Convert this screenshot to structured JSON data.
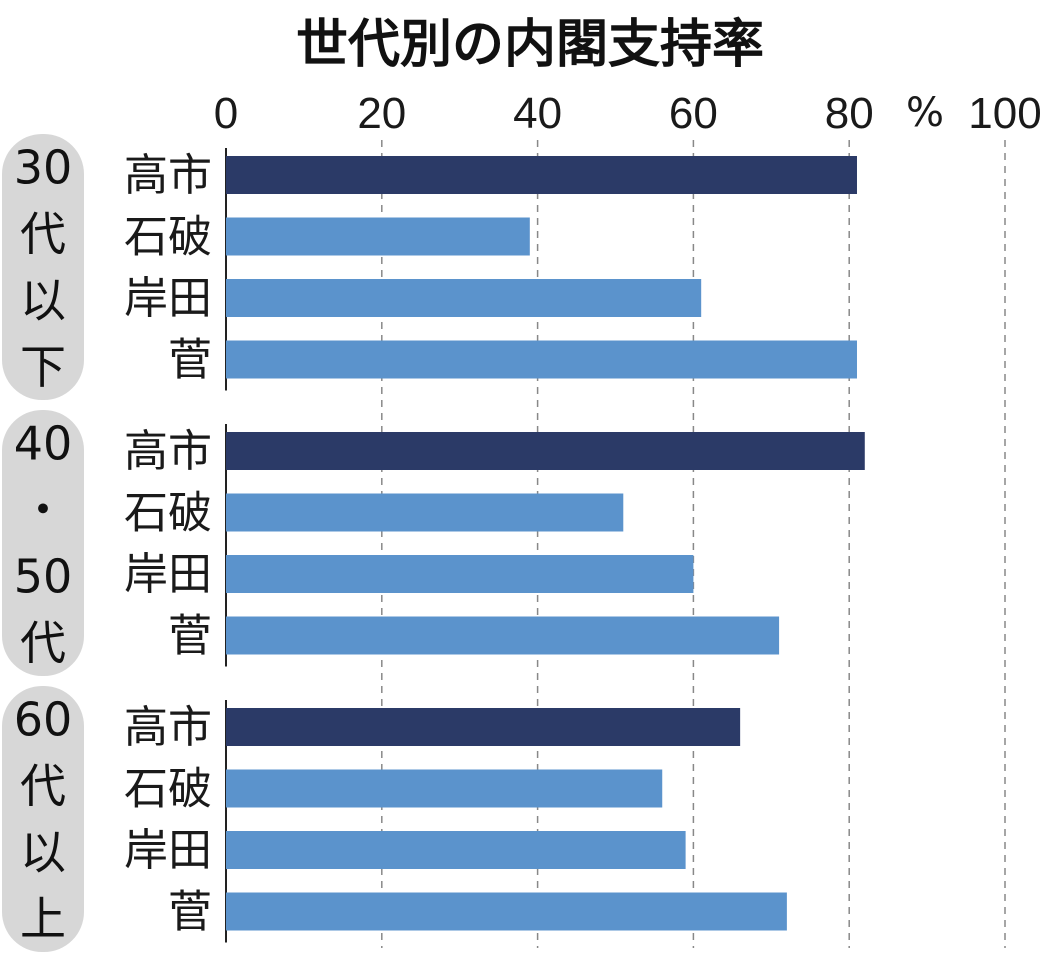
{
  "chart_data": {
    "type": "bar",
    "orientation": "horizontal",
    "title": "世代別の内閣支持率",
    "unit": "%",
    "xlim": [
      0,
      100
    ],
    "ticks": [
      "0",
      "20",
      "40",
      "60",
      "80",
      "100"
    ],
    "grid": "dashed vertical",
    "groups": [
      {
        "label": [
          "30",
          "代",
          "以",
          "下"
        ],
        "bars": [
          {
            "name": "高市",
            "value": 81,
            "color": "#2b3a67"
          },
          {
            "name": "石破",
            "value": 39,
            "color": "#5b93cc"
          },
          {
            "name": "岸田",
            "value": 61,
            "color": "#5b93cc"
          },
          {
            "name": "菅",
            "value": 81,
            "color": "#5b93cc"
          }
        ]
      },
      {
        "label": [
          "40",
          "・",
          "50",
          "代"
        ],
        "bars": [
          {
            "name": "高市",
            "value": 82,
            "color": "#2b3a67"
          },
          {
            "name": "石破",
            "value": 51,
            "color": "#5b93cc"
          },
          {
            "name": "岸田",
            "value": 60,
            "color": "#5b93cc"
          },
          {
            "name": "菅",
            "value": 71,
            "color": "#5b93cc"
          }
        ]
      },
      {
        "label": [
          "60",
          "代",
          "以",
          "上"
        ],
        "bars": [
          {
            "name": "高市",
            "value": 66,
            "color": "#2b3a67"
          },
          {
            "name": "石破",
            "value": 56,
            "color": "#5b93cc"
          },
          {
            "name": "岸田",
            "value": 59,
            "color": "#5b93cc"
          },
          {
            "name": "菅",
            "value": 72,
            "color": "#5b93cc"
          }
        ]
      }
    ]
  }
}
